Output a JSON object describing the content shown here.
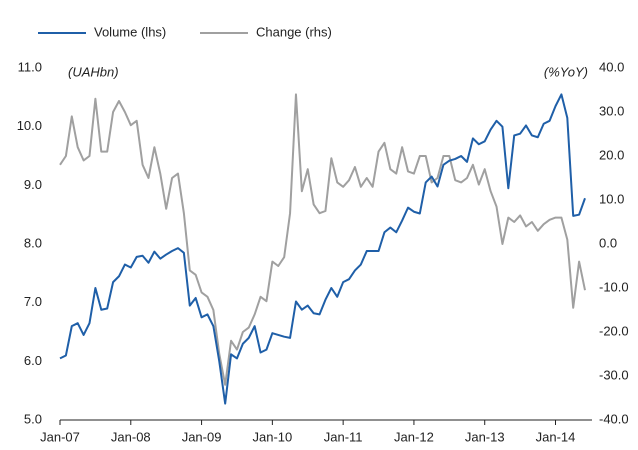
{
  "chart_data": {
    "type": "line",
    "y_unit_label": "(UAHbn)",
    "y2_unit_label": "(%YoY)",
    "categories": [
      "Jan-07",
      null,
      null,
      null,
      null,
      null,
      null,
      null,
      null,
      null,
      null,
      null,
      "Jan-08",
      null,
      null,
      null,
      null,
      null,
      null,
      null,
      null,
      null,
      null,
      null,
      "Jan-09",
      null,
      null,
      null,
      null,
      null,
      null,
      null,
      null,
      null,
      null,
      null,
      "Jan-10",
      null,
      null,
      null,
      null,
      null,
      null,
      null,
      null,
      null,
      null,
      null,
      "Jan-11",
      null,
      null,
      null,
      null,
      null,
      null,
      null,
      null,
      null,
      null,
      null,
      "Jan-12",
      null,
      null,
      null,
      null,
      null,
      null,
      null,
      null,
      null,
      null,
      null,
      "Jan-13",
      null,
      null,
      null,
      null,
      null,
      null,
      null,
      null,
      null,
      null,
      null,
      "Jan-14",
      null,
      null,
      null,
      null,
      null
    ],
    "series": [
      {
        "name": "Volume (lhs)",
        "color": "#1f5fa8",
        "axis": "y",
        "values": [
          6.05,
          6.1,
          6.6,
          6.65,
          6.45,
          6.65,
          7.25,
          6.88,
          6.9,
          7.35,
          7.45,
          7.65,
          7.6,
          7.78,
          7.8,
          7.68,
          7.87,
          7.75,
          7.82,
          7.88,
          7.93,
          7.85,
          6.95,
          7.08,
          6.75,
          6.8,
          6.6,
          6.0,
          5.28,
          6.12,
          6.05,
          6.3,
          6.4,
          6.6,
          6.15,
          6.2,
          6.48,
          6.45,
          6.42,
          6.4,
          7.02,
          6.88,
          6.95,
          6.82,
          6.8,
          7.05,
          7.25,
          7.1,
          7.35,
          7.4,
          7.55,
          7.65,
          7.88,
          7.88,
          7.88,
          8.2,
          8.28,
          8.2,
          8.4,
          8.62,
          8.55,
          8.52,
          9.05,
          9.15,
          8.98,
          9.35,
          9.42,
          9.45,
          9.5,
          9.4,
          9.8,
          9.7,
          9.75,
          9.95,
          10.1,
          10.0,
          8.95,
          9.85,
          9.88,
          10.02,
          9.85,
          9.82,
          10.05,
          10.1,
          10.35,
          10.55,
          10.15,
          8.48,
          8.5,
          8.78
        ]
      },
      {
        "name": "Change (rhs)",
        "color": "#a0a0a0",
        "axis": "y2",
        "values": [
          18,
          20,
          29,
          22,
          19,
          20,
          33,
          21,
          21,
          30,
          32.5,
          30,
          27,
          28,
          18,
          15,
          22,
          16,
          8,
          15,
          16,
          7,
          -6,
          -7,
          -11,
          -12,
          -15,
          -25,
          -32,
          -22,
          -24,
          -20,
          -19,
          -16,
          -12,
          -13,
          -4,
          -5,
          -3,
          7,
          34,
          12,
          17,
          9,
          7,
          7.5,
          19.5,
          14,
          13,
          14.5,
          17.5,
          13,
          15,
          13,
          21,
          23,
          17,
          16,
          22,
          16.5,
          16,
          20,
          20,
          14,
          15,
          20,
          20,
          14.5,
          14,
          15,
          18,
          13.5,
          17,
          12,
          8.5,
          0,
          6,
          5,
          6.5,
          4,
          5,
          3,
          4.5,
          5.5,
          6,
          6,
          1,
          -14.5,
          -4,
          -10.5
        ]
      }
    ],
    "ylim": [
      5,
      11
    ],
    "yticks": [
      {
        "value": 5,
        "label": "5.0"
      },
      {
        "value": 6,
        "label": "6.0"
      },
      {
        "value": 7,
        "label": "7.0"
      },
      {
        "value": 8,
        "label": "8.0"
      },
      {
        "value": 9,
        "label": "9.0"
      },
      {
        "value": 10,
        "label": "10.0"
      },
      {
        "value": 11,
        "label": "11.0"
      }
    ],
    "y2lim": [
      -40,
      40
    ],
    "y2ticks": [
      {
        "value": -40,
        "label": "-40.0"
      },
      {
        "value": -30,
        "label": "-30.0"
      },
      {
        "value": -20,
        "label": "-20.0"
      },
      {
        "value": -10,
        "label": "-10.0"
      },
      {
        "value": 0,
        "label": "0.0"
      },
      {
        "value": 10,
        "label": "10.0"
      },
      {
        "value": 20,
        "label": "20.0"
      },
      {
        "value": 30,
        "label": "30.0"
      },
      {
        "value": 40,
        "label": "40.0"
      }
    ],
    "grid": false,
    "legend": "top"
  }
}
